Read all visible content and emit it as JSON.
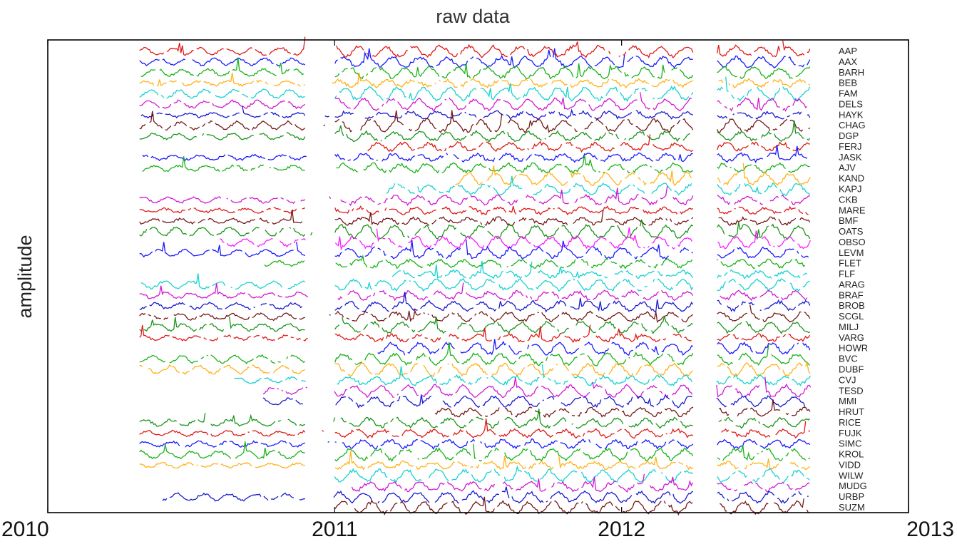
{
  "chart_data": {
    "type": "line",
    "title": "raw data",
    "xlabel": "",
    "ylabel": "amplitude",
    "x_ticks": [
      "2010",
      "2011",
      "2012",
      "2013"
    ],
    "xlim": [
      2010,
      2013
    ],
    "grid": false,
    "legend": "station labels listed at right edge, one per trace",
    "gap": [
      2012.25,
      2012.33
    ],
    "palette": [
      "#ff00ff",
      "#0000ff",
      "#00aa00",
      "#ffaa00",
      "#00cccc",
      "#cc00cc",
      "#0000cc",
      "#660000",
      "#008800",
      "#dd0000"
    ],
    "series": [
      {
        "name": "AAP",
        "color": "#dd0000",
        "start": 2010.32,
        "end": 2012.66
      },
      {
        "name": "AAX",
        "color": "#0000ff",
        "start": 2010.32,
        "end": 2012.66
      },
      {
        "name": "BARH",
        "color": "#00aa00",
        "start": 2010.32,
        "end": 2012.66
      },
      {
        "name": "BEB",
        "color": "#ffaa00",
        "start": 2010.32,
        "end": 2012.66
      },
      {
        "name": "FAM",
        "color": "#00cccc",
        "start": 2010.32,
        "end": 2012.66
      },
      {
        "name": "DELS",
        "color": "#cc00cc",
        "start": 2010.32,
        "end": 2012.66
      },
      {
        "name": "HAYK",
        "color": "#0000cc",
        "start": 2010.32,
        "end": 2012.66
      },
      {
        "name": "CHAG",
        "color": "#660000",
        "start": 2010.32,
        "end": 2012.66
      },
      {
        "name": "DGP",
        "color": "#008800",
        "start": 2010.32,
        "end": 2012.66
      },
      {
        "name": "FERJ",
        "color": "#dd0000",
        "start": 2011.1,
        "end": 2012.66
      },
      {
        "name": "JASK",
        "color": "#0000ff",
        "start": 2010.32,
        "end": 2012.66
      },
      {
        "name": "AJV",
        "color": "#00aa00",
        "start": 2010.32,
        "end": 2012.66
      },
      {
        "name": "KAND",
        "color": "#ffaa00",
        "start": 2011.42,
        "end": 2012.66
      },
      {
        "name": "KAPJ",
        "color": "#00cccc",
        "start": 2011.18,
        "end": 2012.66
      },
      {
        "name": "CKB",
        "color": "#cc00cc",
        "start": 2010.32,
        "end": 2012.66
      },
      {
        "name": "MARE",
        "color": "#dd0000",
        "start": 2010.32,
        "end": 2012.66
      },
      {
        "name": "BMF",
        "color": "#660000",
        "start": 2010.32,
        "end": 2012.66
      },
      {
        "name": "OATS",
        "color": "#008800",
        "start": 2010.32,
        "end": 2012.66
      },
      {
        "name": "OBSO",
        "color": "#ff00ff",
        "start": 2010.6,
        "end": 2012.66
      },
      {
        "name": "LEVM",
        "color": "#0000ff",
        "start": 2010.32,
        "end": 2012.66
      },
      {
        "name": "FLET",
        "color": "#00aa00",
        "start": 2010.75,
        "end": 2012.66
      },
      {
        "name": "FLF",
        "color": "#00cccc",
        "start": 2011.2,
        "end": 2012.66
      },
      {
        "name": "ARAG",
        "color": "#00cccc",
        "start": 2010.32,
        "end": 2012.66
      },
      {
        "name": "BRAF",
        "color": "#cc00cc",
        "start": 2010.32,
        "end": 2012.66
      },
      {
        "name": "BROB",
        "color": "#0000cc",
        "start": 2010.32,
        "end": 2012.66
      },
      {
        "name": "SCGL",
        "color": "#660000",
        "start": 2010.32,
        "end": 2012.66
      },
      {
        "name": "MILJ",
        "color": "#008800",
        "start": 2010.32,
        "end": 2012.66
      },
      {
        "name": "VARG",
        "color": "#dd0000",
        "start": 2010.32,
        "end": 2012.66
      },
      {
        "name": "HOWR",
        "color": "#0000ff",
        "start": 2011.15,
        "end": 2012.66
      },
      {
        "name": "BVC",
        "color": "#00aa00",
        "start": 2010.32,
        "end": 2012.66
      },
      {
        "name": "DUBF",
        "color": "#ffaa00",
        "start": 2010.32,
        "end": 2012.66
      },
      {
        "name": "CVJ",
        "color": "#00cccc",
        "start": 2010.65,
        "end": 2012.66
      },
      {
        "name": "TESD",
        "color": "#cc00cc",
        "start": 2010.75,
        "end": 2012.66
      },
      {
        "name": "MMI",
        "color": "#0000cc",
        "start": 2010.75,
        "end": 2012.66
      },
      {
        "name": "HRUT",
        "color": "#660000",
        "start": 2011.35,
        "end": 2012.66
      },
      {
        "name": "RICE",
        "color": "#008800",
        "start": 2010.32,
        "end": 2012.66
      },
      {
        "name": "FUJK",
        "color": "#dd0000",
        "start": 2010.32,
        "end": 2012.66
      },
      {
        "name": "SIMC",
        "color": "#0000ff",
        "start": 2010.32,
        "end": 2012.66
      },
      {
        "name": "KROL",
        "color": "#00aa00",
        "start": 2010.32,
        "end": 2012.66
      },
      {
        "name": "VIDD",
        "color": "#ffaa00",
        "start": 2010.32,
        "end": 2012.66
      },
      {
        "name": "WILW",
        "color": "#00cccc",
        "start": 2011.0,
        "end": 2012.66
      },
      {
        "name": "MUDG",
        "color": "#cc00cc",
        "start": 2011.05,
        "end": 2012.66
      },
      {
        "name": "URBP",
        "color": "#0000cc",
        "start": 2010.4,
        "end": 2012.66
      },
      {
        "name": "SUZM",
        "color": "#660000",
        "start": 2011.0,
        "end": 2012.66
      }
    ]
  }
}
